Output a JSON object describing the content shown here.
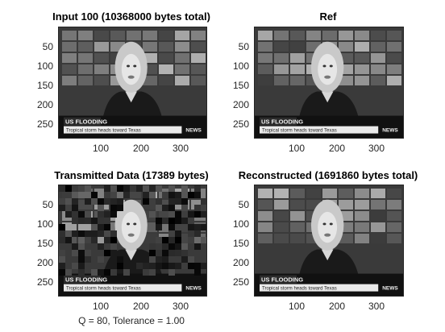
{
  "panels": [
    {
      "title": "Input 100 (10368000 bytes total)",
      "yticks": [
        "50",
        "100",
        "150",
        "200",
        "250"
      ],
      "xticks": [
        "100",
        "200",
        "300"
      ],
      "kind": "clean"
    },
    {
      "title": "Ref",
      "yticks": [
        "50",
        "100",
        "150",
        "200",
        "250"
      ],
      "xticks": [
        "100",
        "200",
        "300"
      ],
      "kind": "clean"
    },
    {
      "title": "Transmitted Data (17389 bytes)",
      "yticks": [
        "50",
        "100",
        "150",
        "200",
        "250"
      ],
      "xticks": [
        "100",
        "200",
        "300"
      ],
      "kind": "blocky"
    },
    {
      "title": "Reconstructed (1691860 bytes total)",
      "yticks": [
        "50",
        "100",
        "150",
        "200",
        "250"
      ],
      "xticks": [
        "100",
        "200",
        "300"
      ],
      "kind": "clean"
    }
  ],
  "lower_left_xlabel": "Q = 80, Tolerance = 1.00",
  "banner": {
    "headline": "US FLOODING",
    "ticker": "Tropical storm heads toward Texas",
    "channel": "NEWS"
  }
}
